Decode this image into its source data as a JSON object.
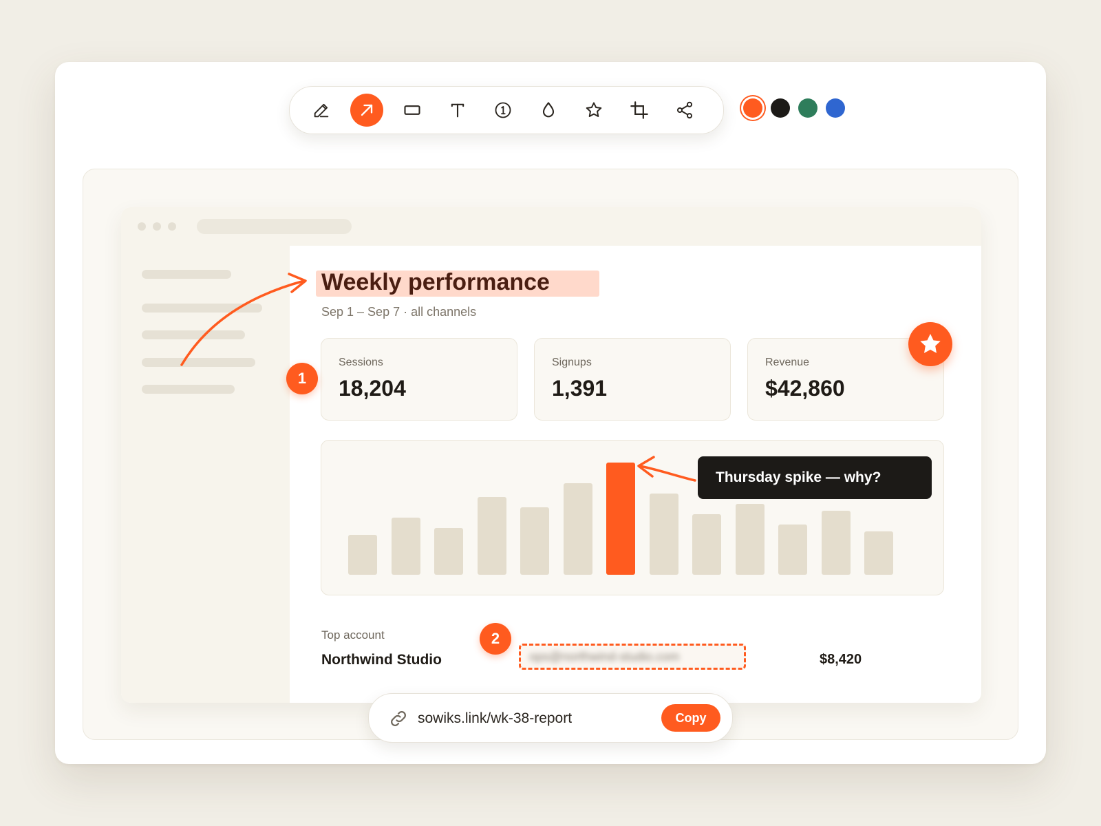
{
  "toolbar": {
    "tools": [
      {
        "name": "pencil-icon",
        "active": false
      },
      {
        "name": "arrow-icon",
        "active": true
      },
      {
        "name": "rectangle-icon",
        "active": false
      },
      {
        "name": "text-icon",
        "active": false
      },
      {
        "name": "number-step-icon",
        "active": false
      },
      {
        "name": "blur-drop-icon",
        "active": false
      },
      {
        "name": "star-icon",
        "active": false
      },
      {
        "name": "crop-icon",
        "active": false
      },
      {
        "name": "share-icon",
        "active": false
      }
    ],
    "colors": [
      {
        "hex": "#ff5b1f",
        "selected": true
      },
      {
        "hex": "#1c1a17",
        "selected": false
      },
      {
        "hex": "#2e7d5b",
        "selected": false
      },
      {
        "hex": "#2f66d0",
        "selected": false
      }
    ]
  },
  "report": {
    "title": "Weekly performance",
    "subtitle": "Sep 1 – Sep 7 · all channels",
    "kpis": [
      {
        "label": "Sessions",
        "value": "18,204"
      },
      {
        "label": "Signups",
        "value": "1,391"
      },
      {
        "label": "Revenue",
        "value": "$42,860"
      }
    ],
    "top_account_label": "Top account",
    "top_account_name": "Northwind Studio",
    "top_account_email_redacted": "ops@northwind-studio.com",
    "top_account_value": "$8,420"
  },
  "chart_data": {
    "type": "bar",
    "values": [
      58,
      83,
      68,
      113,
      98,
      133,
      163,
      118,
      88,
      103,
      73,
      93,
      63
    ],
    "highlight_index": 6,
    "colors": {
      "bar": "#e4ddcd",
      "highlight": "#ff5b1f"
    }
  },
  "annotations": {
    "badge_1": "1",
    "badge_2": "2",
    "callout": "Thursday spike — why?",
    "accent": "#ff5b1f"
  },
  "share": {
    "link": "sowiks.link/wk-38-report",
    "copy_label": "Copy"
  }
}
